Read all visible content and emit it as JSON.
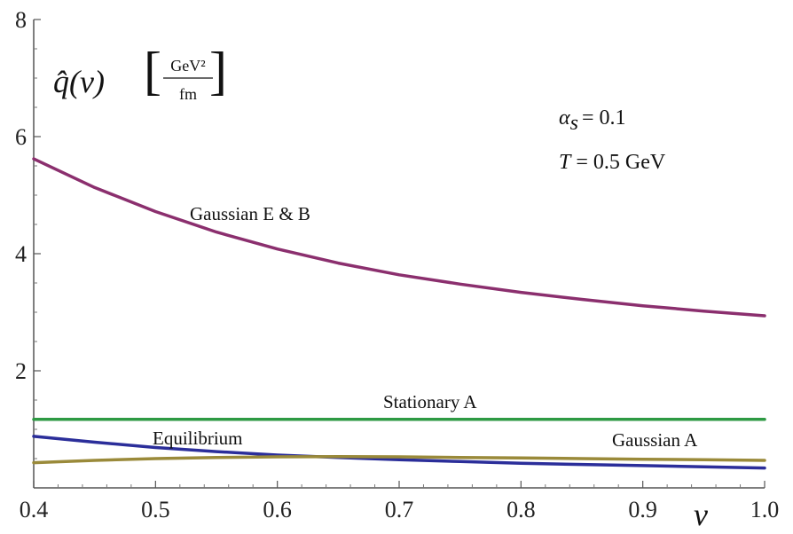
{
  "chart_data": {
    "type": "line",
    "xlabel": "v",
    "ylabel": "q̂(v)",
    "ylabel_units_num": "GeV²",
    "ylabel_units_den": "fm",
    "xlim": [
      0.4,
      1.0
    ],
    "ylim": [
      0,
      8
    ],
    "x_ticks": [
      "0.4",
      "0.5",
      "0.6",
      "0.7",
      "0.8",
      "0.9",
      "1.0"
    ],
    "y_ticks": [
      "2",
      "4",
      "6",
      "8"
    ],
    "annotations": {
      "alpha": "α",
      "alpha_sub": "s",
      "alpha_val": "= 0.1",
      "temp": "T",
      "temp_val": "= 0.5  GeV"
    },
    "series": [
      {
        "name": "Gaussian E & B",
        "color": "#8b2f6e",
        "x": [
          0.4,
          0.45,
          0.5,
          0.55,
          0.6,
          0.65,
          0.7,
          0.75,
          0.8,
          0.85,
          0.9,
          0.95,
          1.0
        ],
        "y": [
          5.62,
          5.13,
          4.72,
          4.37,
          4.08,
          3.84,
          3.64,
          3.48,
          3.34,
          3.22,
          3.11,
          3.02,
          2.94
        ]
      },
      {
        "name": "Stationary A",
        "color": "#2e9a44",
        "x": [
          0.4,
          1.0
        ],
        "y": [
          1.17,
          1.17
        ]
      },
      {
        "name": "Equilibrium",
        "color": "#2b2e9a",
        "x": [
          0.4,
          0.45,
          0.5,
          0.55,
          0.6,
          0.65,
          0.7,
          0.75,
          0.8,
          0.85,
          0.9,
          0.95,
          1.0
        ],
        "y": [
          0.88,
          0.78,
          0.69,
          0.62,
          0.56,
          0.52,
          0.48,
          0.45,
          0.42,
          0.4,
          0.38,
          0.36,
          0.34
        ]
      },
      {
        "name": "Gaussian A",
        "color": "#9a8a3a",
        "x": [
          0.4,
          0.45,
          0.5,
          0.55,
          0.6,
          0.65,
          0.7,
          0.75,
          0.8,
          0.85,
          0.9,
          0.95,
          1.0
        ],
        "y": [
          0.43,
          0.47,
          0.5,
          0.52,
          0.53,
          0.535,
          0.53,
          0.52,
          0.51,
          0.5,
          0.49,
          0.48,
          0.47
        ]
      }
    ]
  }
}
